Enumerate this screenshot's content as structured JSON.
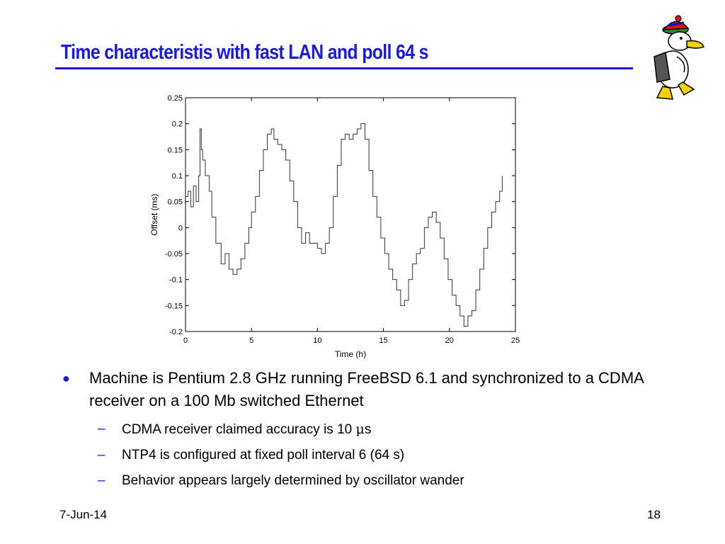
{
  "slide": {
    "title": "Time characteristis with fast LAN and poll 64 s",
    "footer_date": "7-Jun-14",
    "page_number": "18",
    "accent_color": "#1c1cd0"
  },
  "bullets": {
    "main": "Machine is Pentium 2.8 GHz running FreeBSD 6.1 and synchronized to a CDMA receiver on a 100 Mb switched Ethernet",
    "sub": [
      {
        "text": "CDMA receiver claimed accuracy is 10 ",
        "unit_glyph": "μ",
        "unit_rest": "s"
      },
      {
        "text": "NTP4 is configured at fixed poll interval 6 (64 s)"
      },
      {
        "text": "Behavior appears largely determined by oscillator wander"
      }
    ]
  },
  "mascot": {
    "icon": "duck-mascot-icon"
  },
  "chart_data": {
    "type": "line",
    "xlabel": "Time (h)",
    "ylabel": "Offset (ms)",
    "xlim": [
      0,
      25
    ],
    "ylim": [
      -0.2,
      0.25
    ],
    "xticks": [
      "0",
      "5",
      "10",
      "15",
      "20",
      "25"
    ],
    "yticks": [
      "0.25",
      "0.2",
      "0.15",
      "0.1",
      "0.05",
      "0",
      "-0.05",
      "-0.1",
      "-0.15",
      "-0.2"
    ],
    "grid": false,
    "series": [
      {
        "x": [
          0,
          0.2,
          0.4,
          0.6,
          0.8,
          1.0,
          1.1,
          1.2,
          1.3,
          1.5,
          1.8,
          2.0,
          2.3,
          2.7,
          3.0,
          3.3,
          3.6,
          3.9,
          4.2,
          4.5,
          4.8,
          5.0,
          5.3,
          5.6,
          5.9,
          6.2,
          6.5,
          6.7,
          7.0,
          7.3,
          7.6,
          7.9,
          8.2,
          8.5,
          8.8,
          9.1,
          9.4,
          9.7,
          10.0,
          10.3,
          10.6,
          10.9,
          11.2,
          11.5,
          11.8,
          12.1,
          12.4,
          12.7,
          13.0,
          13.3,
          13.6,
          13.9,
          14.2,
          14.5,
          14.8,
          15.1,
          15.4,
          15.7,
          16.0,
          16.3,
          16.6,
          16.9,
          17.2,
          17.5,
          17.8,
          18.1,
          18.4,
          18.7,
          19.0,
          19.3,
          19.6,
          19.9,
          20.2,
          20.5,
          20.8,
          21.1,
          21.4,
          21.7,
          22.0,
          22.3,
          22.6,
          22.9,
          23.2,
          23.5,
          23.8,
          24.0
        ],
        "y": [
          0.06,
          0.07,
          0.04,
          0.08,
          0.05,
          0.1,
          0.19,
          0.15,
          0.13,
          0.1,
          0.07,
          0.02,
          -0.03,
          -0.07,
          -0.05,
          -0.08,
          -0.09,
          -0.08,
          -0.06,
          -0.03,
          0.0,
          0.03,
          0.06,
          0.11,
          0.15,
          0.18,
          0.19,
          0.17,
          0.16,
          0.15,
          0.13,
          0.09,
          0.05,
          0.0,
          -0.03,
          -0.01,
          -0.03,
          -0.03,
          -0.04,
          -0.05,
          -0.03,
          0.0,
          0.06,
          0.12,
          0.17,
          0.18,
          0.17,
          0.18,
          0.19,
          0.2,
          0.17,
          0.11,
          0.06,
          0.02,
          -0.02,
          -0.05,
          -0.08,
          -0.1,
          -0.12,
          -0.15,
          -0.14,
          -0.1,
          -0.07,
          -0.05,
          -0.04,
          0.0,
          0.02,
          0.03,
          0.01,
          -0.02,
          -0.06,
          -0.1,
          -0.13,
          -0.15,
          -0.17,
          -0.19,
          -0.17,
          -0.16,
          -0.12,
          -0.08,
          -0.04,
          0.0,
          0.03,
          0.05,
          0.07,
          0.1
        ]
      }
    ]
  }
}
